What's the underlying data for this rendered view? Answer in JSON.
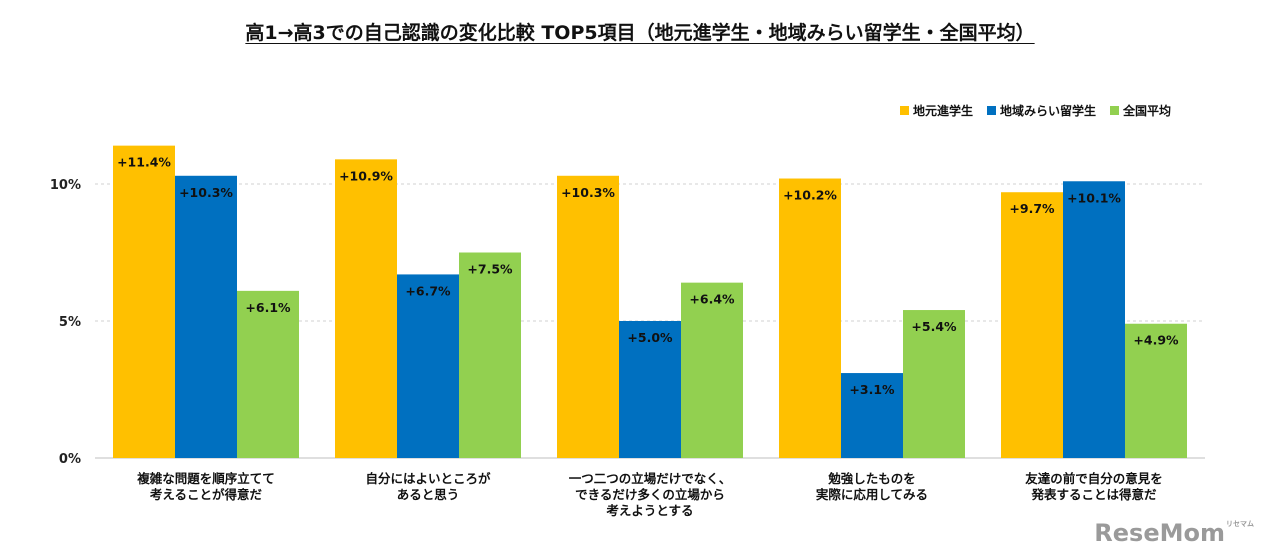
{
  "title": "高1→高3での自己認識の変化比較 TOP5項目（地元進学生・地域みらい留学生・全国平均）",
  "watermark": "ReseMom",
  "watermark_sub": "リセマム",
  "colors": {
    "local": "#FFC000",
    "mirai": "#0070C0",
    "national": "#92D050"
  },
  "chart_data": {
    "type": "bar",
    "title": "高1→高3での自己認識の変化比較 TOP5項目（地元進学生・地域みらい留学生・全国平均）",
    "categories": [
      [
        "複雑な問題を順序立てて",
        "考えることが得意だ"
      ],
      [
        "自分にはよいところが",
        "あると思う"
      ],
      [
        "一つ二つの立場だけでなく、",
        "できるだけ多くの立場から",
        "考えようとする"
      ],
      [
        "勉強したものを",
        "実際に応用してみる"
      ],
      [
        "友達の前で自分の意見を",
        "発表することは得意だ"
      ]
    ],
    "series": [
      {
        "name": "地元進学生",
        "color": "#FFC000",
        "values": [
          11.4,
          10.9,
          10.3,
          10.2,
          9.7
        ],
        "labels": [
          "+11.4%",
          "+10.9%",
          "+10.3%",
          "+10.2%",
          "+9.7%"
        ]
      },
      {
        "name": "地域みらい留学生",
        "color": "#0070C0",
        "values": [
          10.3,
          6.7,
          5.0,
          3.1,
          10.1
        ],
        "labels": [
          "+10.3%",
          "+6.7%",
          "+5.0%",
          "+3.1%",
          "+10.1%"
        ]
      },
      {
        "name": "全国平均",
        "color": "#92D050",
        "values": [
          6.1,
          7.5,
          6.4,
          5.4,
          4.9
        ],
        "labels": [
          "+6.1%",
          "+7.5%",
          "+6.4%",
          "+5.4%",
          "+4.9%"
        ]
      }
    ],
    "yticks": [
      0,
      5,
      10
    ],
    "ytick_labels": [
      "0%",
      "5%",
      "10%"
    ],
    "ylim": [
      0,
      12.5
    ],
    "xlabel": "",
    "ylabel": "",
    "grid": true,
    "legend_position": "top-right"
  }
}
